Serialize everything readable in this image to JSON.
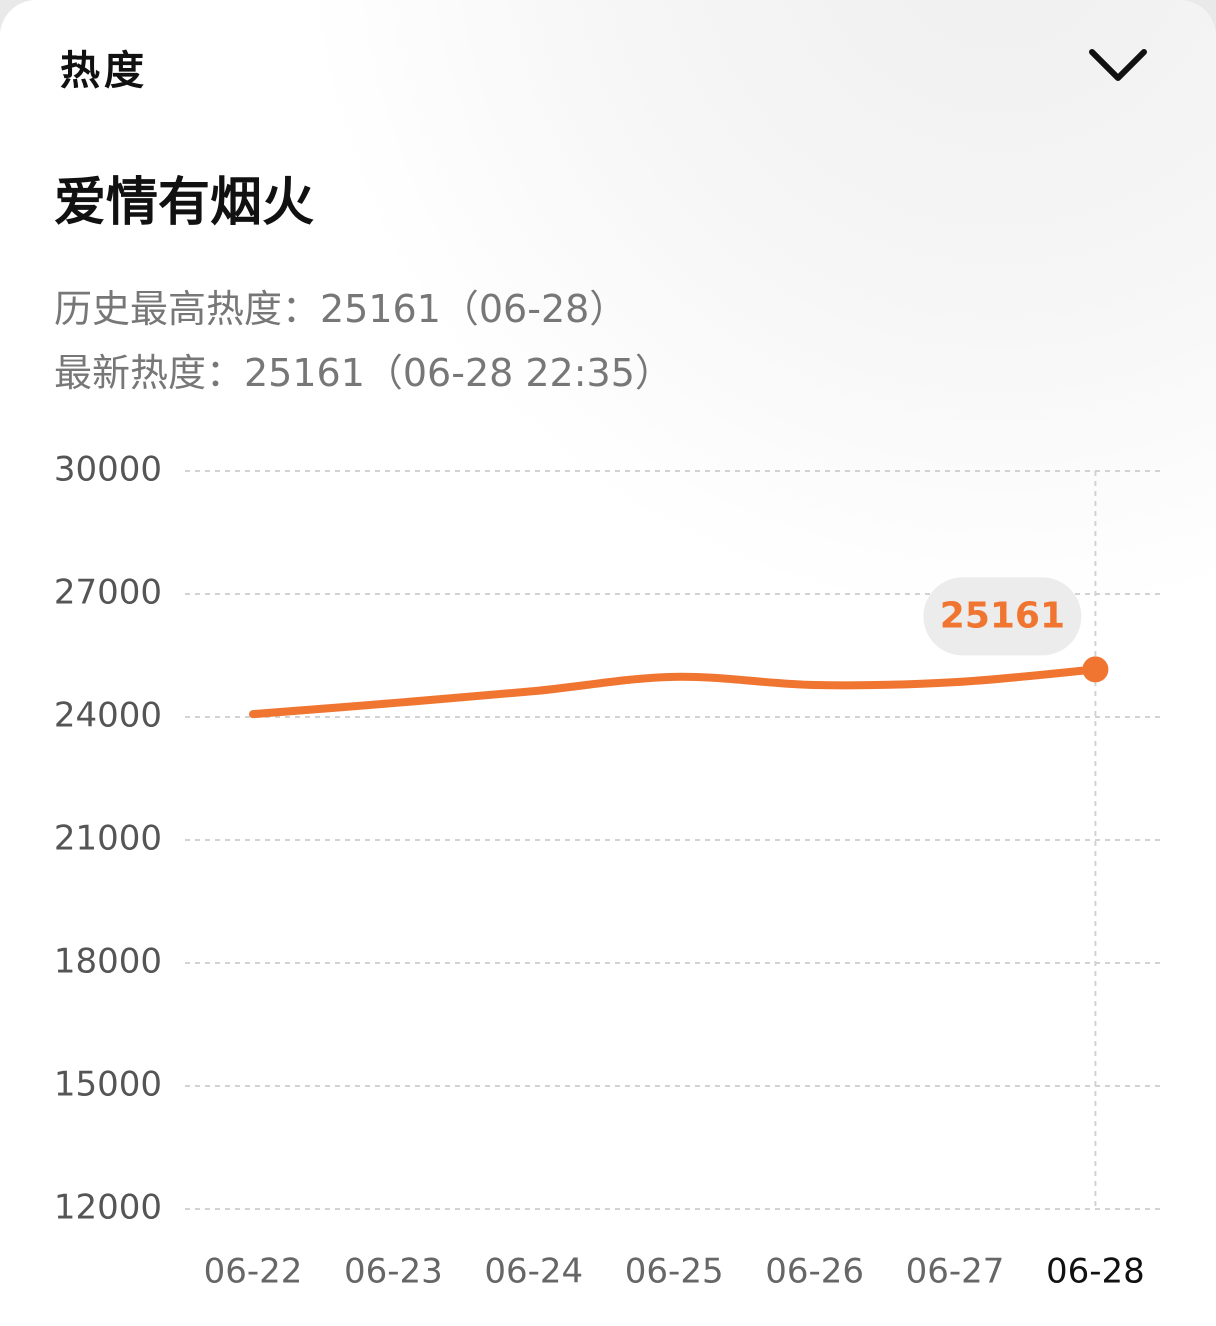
{
  "header": {
    "section": "热度",
    "title": "爱情有烟火",
    "stats": [
      "历史最高热度：25161（06-28）",
      "最新热度：25161（06-28 22:35）"
    ]
  },
  "chart_data": {
    "type": "line",
    "categories": [
      "06-22",
      "06-23",
      "06-24",
      "06-25",
      "06-26",
      "06-27",
      "06-28"
    ],
    "series": [
      {
        "name": "热度",
        "color": "#f07530",
        "values": [
          24070,
          24340,
          24630,
          24980,
          24780,
          24850,
          25161
        ]
      }
    ],
    "ylim": [
      12000,
      30000
    ],
    "yticks": [
      12000,
      15000,
      18000,
      21000,
      24000,
      27000,
      30000
    ],
    "grid": true
  }
}
